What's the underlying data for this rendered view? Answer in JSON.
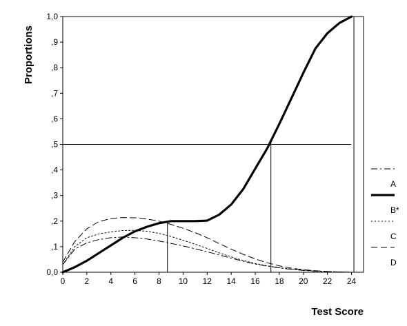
{
  "chart_data": {
    "type": "line",
    "title": "",
    "xlabel": "Test Score",
    "ylabel": "Proportions",
    "xlim": [
      0,
      25
    ],
    "ylim": [
      0,
      1
    ],
    "x_ticks": [
      0,
      2,
      4,
      6,
      8,
      10,
      12,
      14,
      16,
      18,
      20,
      22,
      24
    ],
    "y_ticks": [
      0,
      0.1,
      0.2,
      0.3,
      0.4,
      0.5,
      0.6,
      0.7,
      0.8,
      0.9,
      1.0
    ],
    "y_tick_labels": [
      "0,0",
      ",1",
      ",2",
      ",3",
      ",4",
      ",5",
      ",6",
      ",7",
      ",8",
      ",9",
      "1,0"
    ],
    "grid": false,
    "legend_position": "right",
    "series": [
      {
        "name": "A",
        "style": "dash-dot",
        "x": [
          0,
          1,
          2,
          3,
          4,
          5,
          6,
          7,
          8,
          9,
          10,
          11,
          12,
          13,
          14,
          15,
          16,
          17,
          18,
          19,
          20,
          21,
          22,
          23,
          24
        ],
        "values": [
          0.03,
          0.09,
          0.115,
          0.128,
          0.135,
          0.138,
          0.135,
          0.13,
          0.122,
          0.113,
          0.103,
          0.092,
          0.08,
          0.068,
          0.055,
          0.043,
          0.032,
          0.024,
          0.017,
          0.011,
          0.007,
          0.004,
          0.002,
          0.001,
          0.0
        ]
      },
      {
        "name": "B*",
        "style": "solid-bold",
        "x": [
          0,
          1,
          2,
          3,
          4,
          5,
          6,
          7,
          8,
          9,
          10,
          11,
          12,
          13,
          14,
          15,
          16,
          17,
          18,
          19,
          20,
          21,
          22,
          23,
          24
        ],
        "values": [
          0.0,
          0.02,
          0.045,
          0.075,
          0.105,
          0.135,
          0.16,
          0.178,
          0.192,
          0.2,
          0.2,
          0.2,
          0.202,
          0.225,
          0.265,
          0.325,
          0.405,
          0.485,
          0.58,
          0.68,
          0.78,
          0.875,
          0.935,
          0.975,
          1.0
        ]
      },
      {
        "name": "C",
        "style": "dotted",
        "x": [
          0,
          1,
          2,
          3,
          4,
          5,
          6,
          7,
          8,
          9,
          10,
          11,
          12,
          13,
          14,
          15,
          16,
          17,
          18,
          19,
          20,
          21,
          22,
          23,
          24
        ],
        "values": [
          0.03,
          0.1,
          0.135,
          0.15,
          0.158,
          0.163,
          0.164,
          0.16,
          0.152,
          0.14,
          0.125,
          0.11,
          0.093,
          0.076,
          0.06,
          0.046,
          0.034,
          0.025,
          0.018,
          0.012,
          0.008,
          0.005,
          0.003,
          0.001,
          0.0
        ]
      },
      {
        "name": "D",
        "style": "dashed",
        "x": [
          0,
          1,
          2,
          3,
          4,
          5,
          6,
          7,
          8,
          9,
          10,
          11,
          12,
          13,
          14,
          15,
          16,
          17,
          18,
          19,
          20,
          21,
          22,
          23,
          24
        ],
        "values": [
          0.04,
          0.12,
          0.17,
          0.198,
          0.21,
          0.214,
          0.213,
          0.208,
          0.2,
          0.187,
          0.172,
          0.155,
          0.135,
          0.112,
          0.09,
          0.07,
          0.052,
          0.037,
          0.025,
          0.016,
          0.01,
          0.006,
          0.003,
          0.001,
          0.0
        ]
      }
    ],
    "reference_lines": {
      "horizontal_at_y": [
        0.5,
        1.0
      ],
      "vertical_at_x": [
        8.7,
        17.3,
        24.2
      ]
    }
  }
}
